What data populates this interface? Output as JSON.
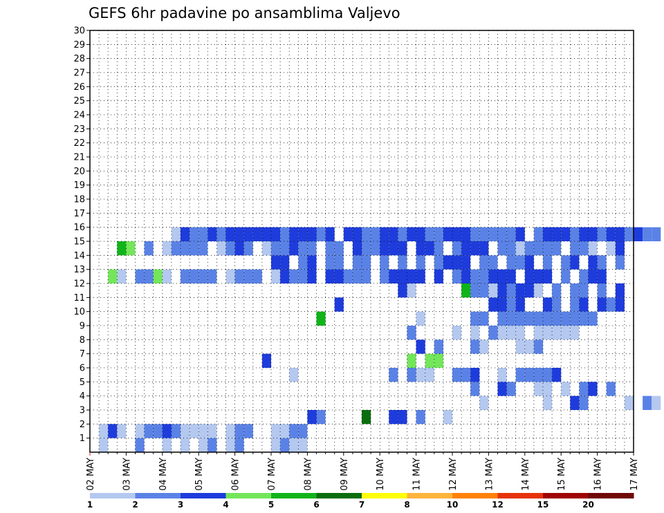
{
  "chart_data": {
    "type": "heatmap",
    "title": "GEFS 6hr padavine po ansamblima Valjevo",
    "xlabel": "",
    "ylabel": "",
    "x_tick_labels": [
      "02 MAY",
      "03 MAY",
      "04 MAY",
      "05 MAY",
      "06 MAY",
      "07 MAY",
      "08 MAY",
      "09 MAY",
      "10 MAY",
      "11 MAY",
      "12 MAY",
      "13 MAY",
      "14 MAY",
      "15 MAY",
      "16 MAY",
      "17 MAY"
    ],
    "y_tick_labels": [
      "1",
      "2",
      "3",
      "4",
      "5",
      "6",
      "7",
      "8",
      "9",
      "10",
      "11",
      "12",
      "13",
      "14",
      "15",
      "16",
      "17",
      "18",
      "19",
      "20",
      "21",
      "22",
      "23",
      "24",
      "25",
      "26",
      "27",
      "28",
      "29",
      "30"
    ],
    "x_unit": "6-hour step starting 02 MAY 00Z",
    "y_unit": "ensemble member (0-30)",
    "grid": true,
    "legend_position": "bottom",
    "colorbar": {
      "tick_labels": [
        "1",
        "2",
        "3",
        "4",
        "5",
        "6",
        "7",
        "8",
        "10",
        "12",
        "15",
        "20"
      ],
      "colors": [
        "#b4c8f0",
        "#5a82e6",
        "#1e3cdc",
        "#73e65a",
        "#10b41a",
        "#0a6e0e",
        "#ffff0a",
        "#ffb43c",
        "#ff820a",
        "#e6320a",
        "#a00505",
        "#700808"
      ]
    },
    "cells": [
      [
        1,
        0,
        1
      ],
      [
        5,
        0,
        2
      ],
      [
        8,
        0,
        1
      ],
      [
        10,
        0,
        1
      ],
      [
        12,
        0,
        1
      ],
      [
        13,
        0,
        2
      ],
      [
        15,
        0,
        1
      ],
      [
        16,
        0,
        2
      ],
      [
        20,
        0,
        1
      ],
      [
        21,
        0,
        2
      ],
      [
        22,
        0,
        1
      ],
      [
        23,
        0,
        1
      ],
      [
        1,
        1,
        1
      ],
      [
        2,
        1,
        3
      ],
      [
        3,
        1,
        1
      ],
      [
        5,
        1,
        1
      ],
      [
        6,
        1,
        2
      ],
      [
        7,
        1,
        2
      ],
      [
        8,
        1,
        3
      ],
      [
        9,
        1,
        2
      ],
      [
        10,
        1,
        1
      ],
      [
        11,
        1,
        1
      ],
      [
        12,
        1,
        1
      ],
      [
        13,
        1,
        1
      ],
      [
        15,
        1,
        1
      ],
      [
        16,
        1,
        2
      ],
      [
        17,
        1,
        2
      ],
      [
        20,
        1,
        1
      ],
      [
        21,
        1,
        1
      ],
      [
        22,
        1,
        2
      ],
      [
        23,
        1,
        2
      ],
      [
        24,
        2,
        3
      ],
      [
        25,
        2,
        2
      ],
      [
        30,
        2,
        6
      ],
      [
        33,
        2,
        3
      ],
      [
        34,
        2,
        3
      ],
      [
        36,
        2,
        2
      ],
      [
        39,
        2,
        1
      ],
      [
        43,
        3,
        1
      ],
      [
        50,
        3,
        1
      ],
      [
        53,
        3,
        3
      ],
      [
        54,
        3,
        2
      ],
      [
        59,
        3,
        1
      ],
      [
        61,
        3,
        2
      ],
      [
        62,
        3,
        1
      ],
      [
        42,
        4,
        2
      ],
      [
        45,
        4,
        3
      ],
      [
        46,
        4,
        2
      ],
      [
        49,
        4,
        1
      ],
      [
        50,
        4,
        1
      ],
      [
        52,
        4,
        1
      ],
      [
        54,
        4,
        2
      ],
      [
        55,
        4,
        3
      ],
      [
        57,
        4,
        2
      ],
      [
        22,
        5,
        1
      ],
      [
        33,
        5,
        2
      ],
      [
        35,
        5,
        2
      ],
      [
        36,
        5,
        1
      ],
      [
        37,
        5,
        1
      ],
      [
        40,
        5,
        2
      ],
      [
        41,
        5,
        2
      ],
      [
        42,
        5,
        3
      ],
      [
        45,
        5,
        1
      ],
      [
        47,
        5,
        2
      ],
      [
        48,
        5,
        2
      ],
      [
        49,
        5,
        2
      ],
      [
        50,
        5,
        2
      ],
      [
        51,
        5,
        3
      ],
      [
        19,
        6,
        3
      ],
      [
        35,
        6,
        4
      ],
      [
        37,
        6,
        4
      ],
      [
        38,
        6,
        4
      ],
      [
        36,
        7,
        3
      ],
      [
        38,
        7,
        2
      ],
      [
        42,
        7,
        2
      ],
      [
        43,
        7,
        1
      ],
      [
        47,
        7,
        1
      ],
      [
        48,
        7,
        1
      ],
      [
        49,
        7,
        2
      ],
      [
        35,
        8,
        2
      ],
      [
        40,
        8,
        1
      ],
      [
        42,
        8,
        1
      ],
      [
        44,
        8,
        2
      ],
      [
        45,
        8,
        1
      ],
      [
        46,
        8,
        1
      ],
      [
        47,
        8,
        1
      ],
      [
        49,
        8,
        1
      ],
      [
        50,
        8,
        1
      ],
      [
        51,
        8,
        1
      ],
      [
        52,
        8,
        1
      ],
      [
        53,
        8,
        1
      ],
      [
        25,
        9,
        5
      ],
      [
        36,
        9,
        1
      ],
      [
        42,
        9,
        2
      ],
      [
        43,
        9,
        2
      ],
      [
        45,
        9,
        2
      ],
      [
        46,
        9,
        2
      ],
      [
        47,
        9,
        2
      ],
      [
        48,
        9,
        2
      ],
      [
        49,
        9,
        2
      ],
      [
        50,
        9,
        2
      ],
      [
        51,
        9,
        2
      ],
      [
        52,
        9,
        2
      ],
      [
        53,
        9,
        2
      ],
      [
        54,
        9,
        2
      ],
      [
        55,
        9,
        2
      ],
      [
        27,
        10,
        3
      ],
      [
        44,
        10,
        3
      ],
      [
        45,
        10,
        3
      ],
      [
        46,
        10,
        2
      ],
      [
        47,
        10,
        3
      ],
      [
        50,
        10,
        3
      ],
      [
        51,
        10,
        2
      ],
      [
        53,
        10,
        2
      ],
      [
        54,
        10,
        3
      ],
      [
        56,
        10,
        3
      ],
      [
        57,
        10,
        2
      ],
      [
        58,
        10,
        3
      ],
      [
        34,
        11,
        3
      ],
      [
        35,
        11,
        1
      ],
      [
        41,
        11,
        5
      ],
      [
        42,
        11,
        2
      ],
      [
        43,
        11,
        2
      ],
      [
        44,
        11,
        1
      ],
      [
        45,
        11,
        3
      ],
      [
        46,
        11,
        2
      ],
      [
        47,
        11,
        3
      ],
      [
        48,
        11,
        3
      ],
      [
        49,
        11,
        1
      ],
      [
        51,
        11,
        2
      ],
      [
        53,
        11,
        2
      ],
      [
        54,
        11,
        2
      ],
      [
        56,
        11,
        2
      ],
      [
        58,
        11,
        3
      ],
      [
        2,
        12,
        4
      ],
      [
        3,
        12,
        1
      ],
      [
        5,
        12,
        2
      ],
      [
        6,
        12,
        2
      ],
      [
        7,
        12,
        4
      ],
      [
        8,
        12,
        1
      ],
      [
        10,
        12,
        2
      ],
      [
        11,
        12,
        2
      ],
      [
        12,
        12,
        2
      ],
      [
        13,
        12,
        2
      ],
      [
        15,
        12,
        1
      ],
      [
        16,
        12,
        2
      ],
      [
        17,
        12,
        2
      ],
      [
        18,
        12,
        2
      ],
      [
        20,
        12,
        1
      ],
      [
        21,
        12,
        3
      ],
      [
        22,
        12,
        2
      ],
      [
        23,
        12,
        2
      ],
      [
        24,
        12,
        3
      ],
      [
        26,
        12,
        3
      ],
      [
        27,
        12,
        3
      ],
      [
        28,
        12,
        2
      ],
      [
        29,
        12,
        2
      ],
      [
        30,
        12,
        2
      ],
      [
        32,
        12,
        2
      ],
      [
        33,
        12,
        3
      ],
      [
        34,
        12,
        3
      ],
      [
        35,
        12,
        3
      ],
      [
        36,
        12,
        3
      ],
      [
        38,
        12,
        3
      ],
      [
        40,
        12,
        2
      ],
      [
        41,
        12,
        3
      ],
      [
        42,
        12,
        2
      ],
      [
        43,
        12,
        2
      ],
      [
        44,
        12,
        3
      ],
      [
        45,
        12,
        3
      ],
      [
        46,
        12,
        3
      ],
      [
        48,
        12,
        3
      ],
      [
        49,
        12,
        3
      ],
      [
        50,
        12,
        3
      ],
      [
        52,
        12,
        2
      ],
      [
        54,
        12,
        2
      ],
      [
        55,
        12,
        3
      ],
      [
        56,
        12,
        3
      ],
      [
        20,
        13,
        3
      ],
      [
        21,
        13,
        3
      ],
      [
        23,
        13,
        2
      ],
      [
        24,
        13,
        3
      ],
      [
        26,
        13,
        2
      ],
      [
        27,
        13,
        2
      ],
      [
        29,
        13,
        2
      ],
      [
        30,
        13,
        2
      ],
      [
        32,
        13,
        2
      ],
      [
        34,
        13,
        2
      ],
      [
        36,
        13,
        2
      ],
      [
        38,
        13,
        2
      ],
      [
        39,
        13,
        3
      ],
      [
        40,
        13,
        3
      ],
      [
        41,
        13,
        3
      ],
      [
        43,
        13,
        2
      ],
      [
        44,
        13,
        2
      ],
      [
        46,
        13,
        2
      ],
      [
        47,
        13,
        2
      ],
      [
        48,
        13,
        3
      ],
      [
        50,
        13,
        2
      ],
      [
        52,
        13,
        2
      ],
      [
        53,
        13,
        3
      ],
      [
        55,
        13,
        3
      ],
      [
        56,
        13,
        2
      ],
      [
        58,
        13,
        2
      ],
      [
        3,
        14,
        5
      ],
      [
        4,
        14,
        4
      ],
      [
        6,
        14,
        2
      ],
      [
        8,
        14,
        1
      ],
      [
        9,
        14,
        2
      ],
      [
        10,
        14,
        2
      ],
      [
        11,
        14,
        2
      ],
      [
        12,
        14,
        2
      ],
      [
        14,
        14,
        1
      ],
      [
        15,
        14,
        2
      ],
      [
        16,
        14,
        3
      ],
      [
        17,
        14,
        2
      ],
      [
        19,
        14,
        1
      ],
      [
        20,
        14,
        2
      ],
      [
        21,
        14,
        2
      ],
      [
        22,
        14,
        3
      ],
      [
        23,
        14,
        2
      ],
      [
        24,
        14,
        2
      ],
      [
        26,
        14,
        2
      ],
      [
        27,
        14,
        2
      ],
      [
        29,
        14,
        3
      ],
      [
        30,
        14,
        2
      ],
      [
        31,
        14,
        2
      ],
      [
        32,
        14,
        3
      ],
      [
        33,
        14,
        3
      ],
      [
        34,
        14,
        3
      ],
      [
        36,
        14,
        3
      ],
      [
        37,
        14,
        3
      ],
      [
        38,
        14,
        2
      ],
      [
        40,
        14,
        2
      ],
      [
        41,
        14,
        3
      ],
      [
        42,
        14,
        3
      ],
      [
        43,
        14,
        3
      ],
      [
        45,
        14,
        2
      ],
      [
        46,
        14,
        2
      ],
      [
        47,
        14,
        1
      ],
      [
        48,
        14,
        2
      ],
      [
        49,
        14,
        2
      ],
      [
        50,
        14,
        2
      ],
      [
        51,
        14,
        2
      ],
      [
        53,
        14,
        2
      ],
      [
        54,
        14,
        2
      ],
      [
        55,
        14,
        1
      ],
      [
        57,
        14,
        1
      ],
      [
        58,
        14,
        3
      ],
      [
        9,
        15,
        1
      ],
      [
        10,
        15,
        3
      ],
      [
        11,
        15,
        2
      ],
      [
        12,
        15,
        2
      ],
      [
        13,
        15,
        3
      ],
      [
        14,
        15,
        2
      ],
      [
        15,
        15,
        3
      ],
      [
        16,
        15,
        3
      ],
      [
        17,
        15,
        3
      ],
      [
        18,
        15,
        3
      ],
      [
        19,
        15,
        3
      ],
      [
        20,
        15,
        3
      ],
      [
        21,
        15,
        2
      ],
      [
        22,
        15,
        3
      ],
      [
        23,
        15,
        3
      ],
      [
        24,
        15,
        3
      ],
      [
        25,
        15,
        2
      ],
      [
        26,
        15,
        3
      ],
      [
        28,
        15,
        3
      ],
      [
        29,
        15,
        3
      ],
      [
        30,
        15,
        2
      ],
      [
        31,
        15,
        2
      ],
      [
        32,
        15,
        3
      ],
      [
        33,
        15,
        3
      ],
      [
        34,
        15,
        2
      ],
      [
        35,
        15,
        3
      ],
      [
        36,
        15,
        3
      ],
      [
        37,
        15,
        2
      ],
      [
        38,
        15,
        2
      ],
      [
        39,
        15,
        3
      ],
      [
        40,
        15,
        3
      ],
      [
        41,
        15,
        3
      ],
      [
        42,
        15,
        2
      ],
      [
        43,
        15,
        2
      ],
      [
        44,
        15,
        2
      ],
      [
        45,
        15,
        2
      ],
      [
        46,
        15,
        2
      ],
      [
        47,
        15,
        3
      ],
      [
        49,
        15,
        2
      ],
      [
        50,
        15,
        3
      ],
      [
        51,
        15,
        3
      ],
      [
        52,
        15,
        3
      ],
      [
        53,
        15,
        2
      ],
      [
        54,
        15,
        3
      ],
      [
        55,
        15,
        3
      ],
      [
        56,
        15,
        2
      ],
      [
        57,
        15,
        3
      ],
      [
        58,
        15,
        3
      ],
      [
        59,
        15,
        2
      ],
      [
        60,
        15,
        3
      ],
      [
        61,
        15,
        2
      ],
      [
        62,
        15,
        2
      ]
    ]
  }
}
